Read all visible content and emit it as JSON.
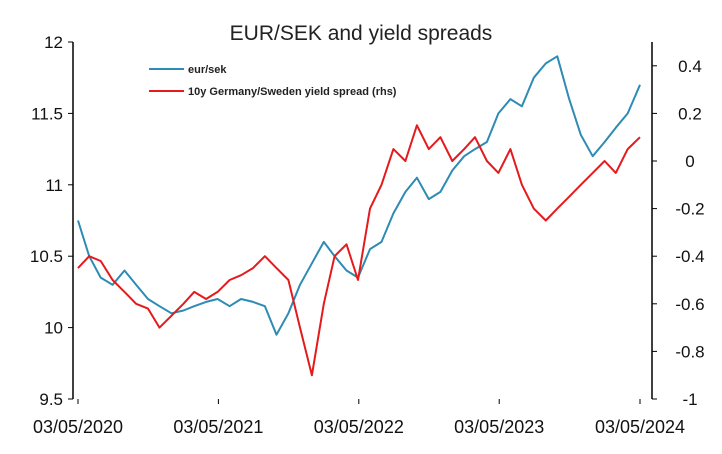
{
  "chart_data": {
    "type": "line",
    "title": "EUR/SEK and yield spreads",
    "x_ticks": [
      "03/05/2020",
      "03/05/2021",
      "03/05/2022",
      "03/05/2023",
      "03/05/2024"
    ],
    "y_left": {
      "ticks": [
        "9.5",
        "10",
        "10.5",
        "11",
        "11.5",
        "12"
      ],
      "ylim": [
        9.5,
        12
      ]
    },
    "y_right": {
      "ticks": [
        "-1",
        "-0.8",
        "-0.6",
        "-0.4",
        "-0.2",
        "0",
        "0.2",
        "0.4"
      ],
      "ylim": [
        -1,
        0.5
      ]
    },
    "legend_position": "top-center",
    "series": [
      {
        "name": "eur/sek",
        "axis": "left",
        "color": "#2e8bb3",
        "x": [
          "2020-05-03",
          "2020-06-01",
          "2020-07-01",
          "2020-08-01",
          "2020-09-01",
          "2020-10-01",
          "2020-11-01",
          "2020-12-01",
          "2021-01-01",
          "2021-02-01",
          "2021-03-01",
          "2021-04-01",
          "2021-05-01",
          "2021-06-01",
          "2021-07-01",
          "2021-08-01",
          "2021-09-01",
          "2021-10-01",
          "2021-11-01",
          "2021-12-01",
          "2022-01-01",
          "2022-02-01",
          "2022-03-01",
          "2022-04-01",
          "2022-05-01",
          "2022-06-01",
          "2022-07-01",
          "2022-08-01",
          "2022-09-01",
          "2022-10-01",
          "2022-11-01",
          "2022-12-01",
          "2023-01-01",
          "2023-02-01",
          "2023-03-01",
          "2023-04-01",
          "2023-05-01",
          "2023-06-01",
          "2023-07-01",
          "2023-08-01",
          "2023-09-01",
          "2023-10-01",
          "2023-11-01",
          "2023-12-01",
          "2024-01-01",
          "2024-02-01",
          "2024-03-01",
          "2024-04-01",
          "2024-05-03"
        ],
        "values": [
          10.75,
          10.5,
          10.35,
          10.3,
          10.4,
          10.3,
          10.2,
          10.15,
          10.1,
          10.12,
          10.15,
          10.18,
          10.2,
          10.15,
          10.2,
          10.18,
          10.15,
          9.95,
          10.1,
          10.3,
          10.45,
          10.6,
          10.5,
          10.4,
          10.35,
          10.55,
          10.6,
          10.8,
          10.95,
          11.05,
          10.9,
          10.95,
          11.1,
          11.2,
          11.25,
          11.3,
          11.5,
          11.6,
          11.55,
          11.75,
          11.85,
          11.9,
          11.6,
          11.35,
          11.2,
          11.3,
          11.4,
          11.5,
          11.7
        ]
      },
      {
        "name": "10y Germany/Sweden yield spread (rhs)",
        "axis": "right",
        "color": "#e41a1c",
        "x": [
          "2020-05-03",
          "2020-06-01",
          "2020-07-01",
          "2020-08-01",
          "2020-09-01",
          "2020-10-01",
          "2020-11-01",
          "2020-12-01",
          "2021-01-01",
          "2021-02-01",
          "2021-03-01",
          "2021-04-01",
          "2021-05-01",
          "2021-06-01",
          "2021-07-01",
          "2021-08-01",
          "2021-09-01",
          "2021-10-01",
          "2021-11-01",
          "2021-12-01",
          "2022-01-01",
          "2022-02-01",
          "2022-03-01",
          "2022-04-01",
          "2022-05-01",
          "2022-06-01",
          "2022-07-01",
          "2022-08-01",
          "2022-09-01",
          "2022-10-01",
          "2022-11-01",
          "2022-12-01",
          "2023-01-01",
          "2023-02-01",
          "2023-03-01",
          "2023-04-01",
          "2023-05-01",
          "2023-06-01",
          "2023-07-01",
          "2023-08-01",
          "2023-09-01",
          "2023-10-01",
          "2023-11-01",
          "2023-12-01",
          "2024-01-01",
          "2024-02-01",
          "2024-03-01",
          "2024-04-01",
          "2024-05-03"
        ],
        "values": [
          -0.45,
          -0.4,
          -0.42,
          -0.5,
          -0.55,
          -0.6,
          -0.62,
          -0.7,
          -0.65,
          -0.6,
          -0.55,
          -0.58,
          -0.55,
          -0.5,
          -0.48,
          -0.45,
          -0.4,
          -0.45,
          -0.5,
          -0.7,
          -0.9,
          -0.6,
          -0.4,
          -0.35,
          -0.5,
          -0.2,
          -0.1,
          0.05,
          0.0,
          0.15,
          0.05,
          0.1,
          0.0,
          0.05,
          0.1,
          0.0,
          -0.05,
          0.05,
          -0.1,
          -0.2,
          -0.25,
          -0.2,
          -0.15,
          -0.1,
          -0.05,
          0.0,
          -0.05,
          0.05,
          0.1
        ]
      }
    ]
  }
}
